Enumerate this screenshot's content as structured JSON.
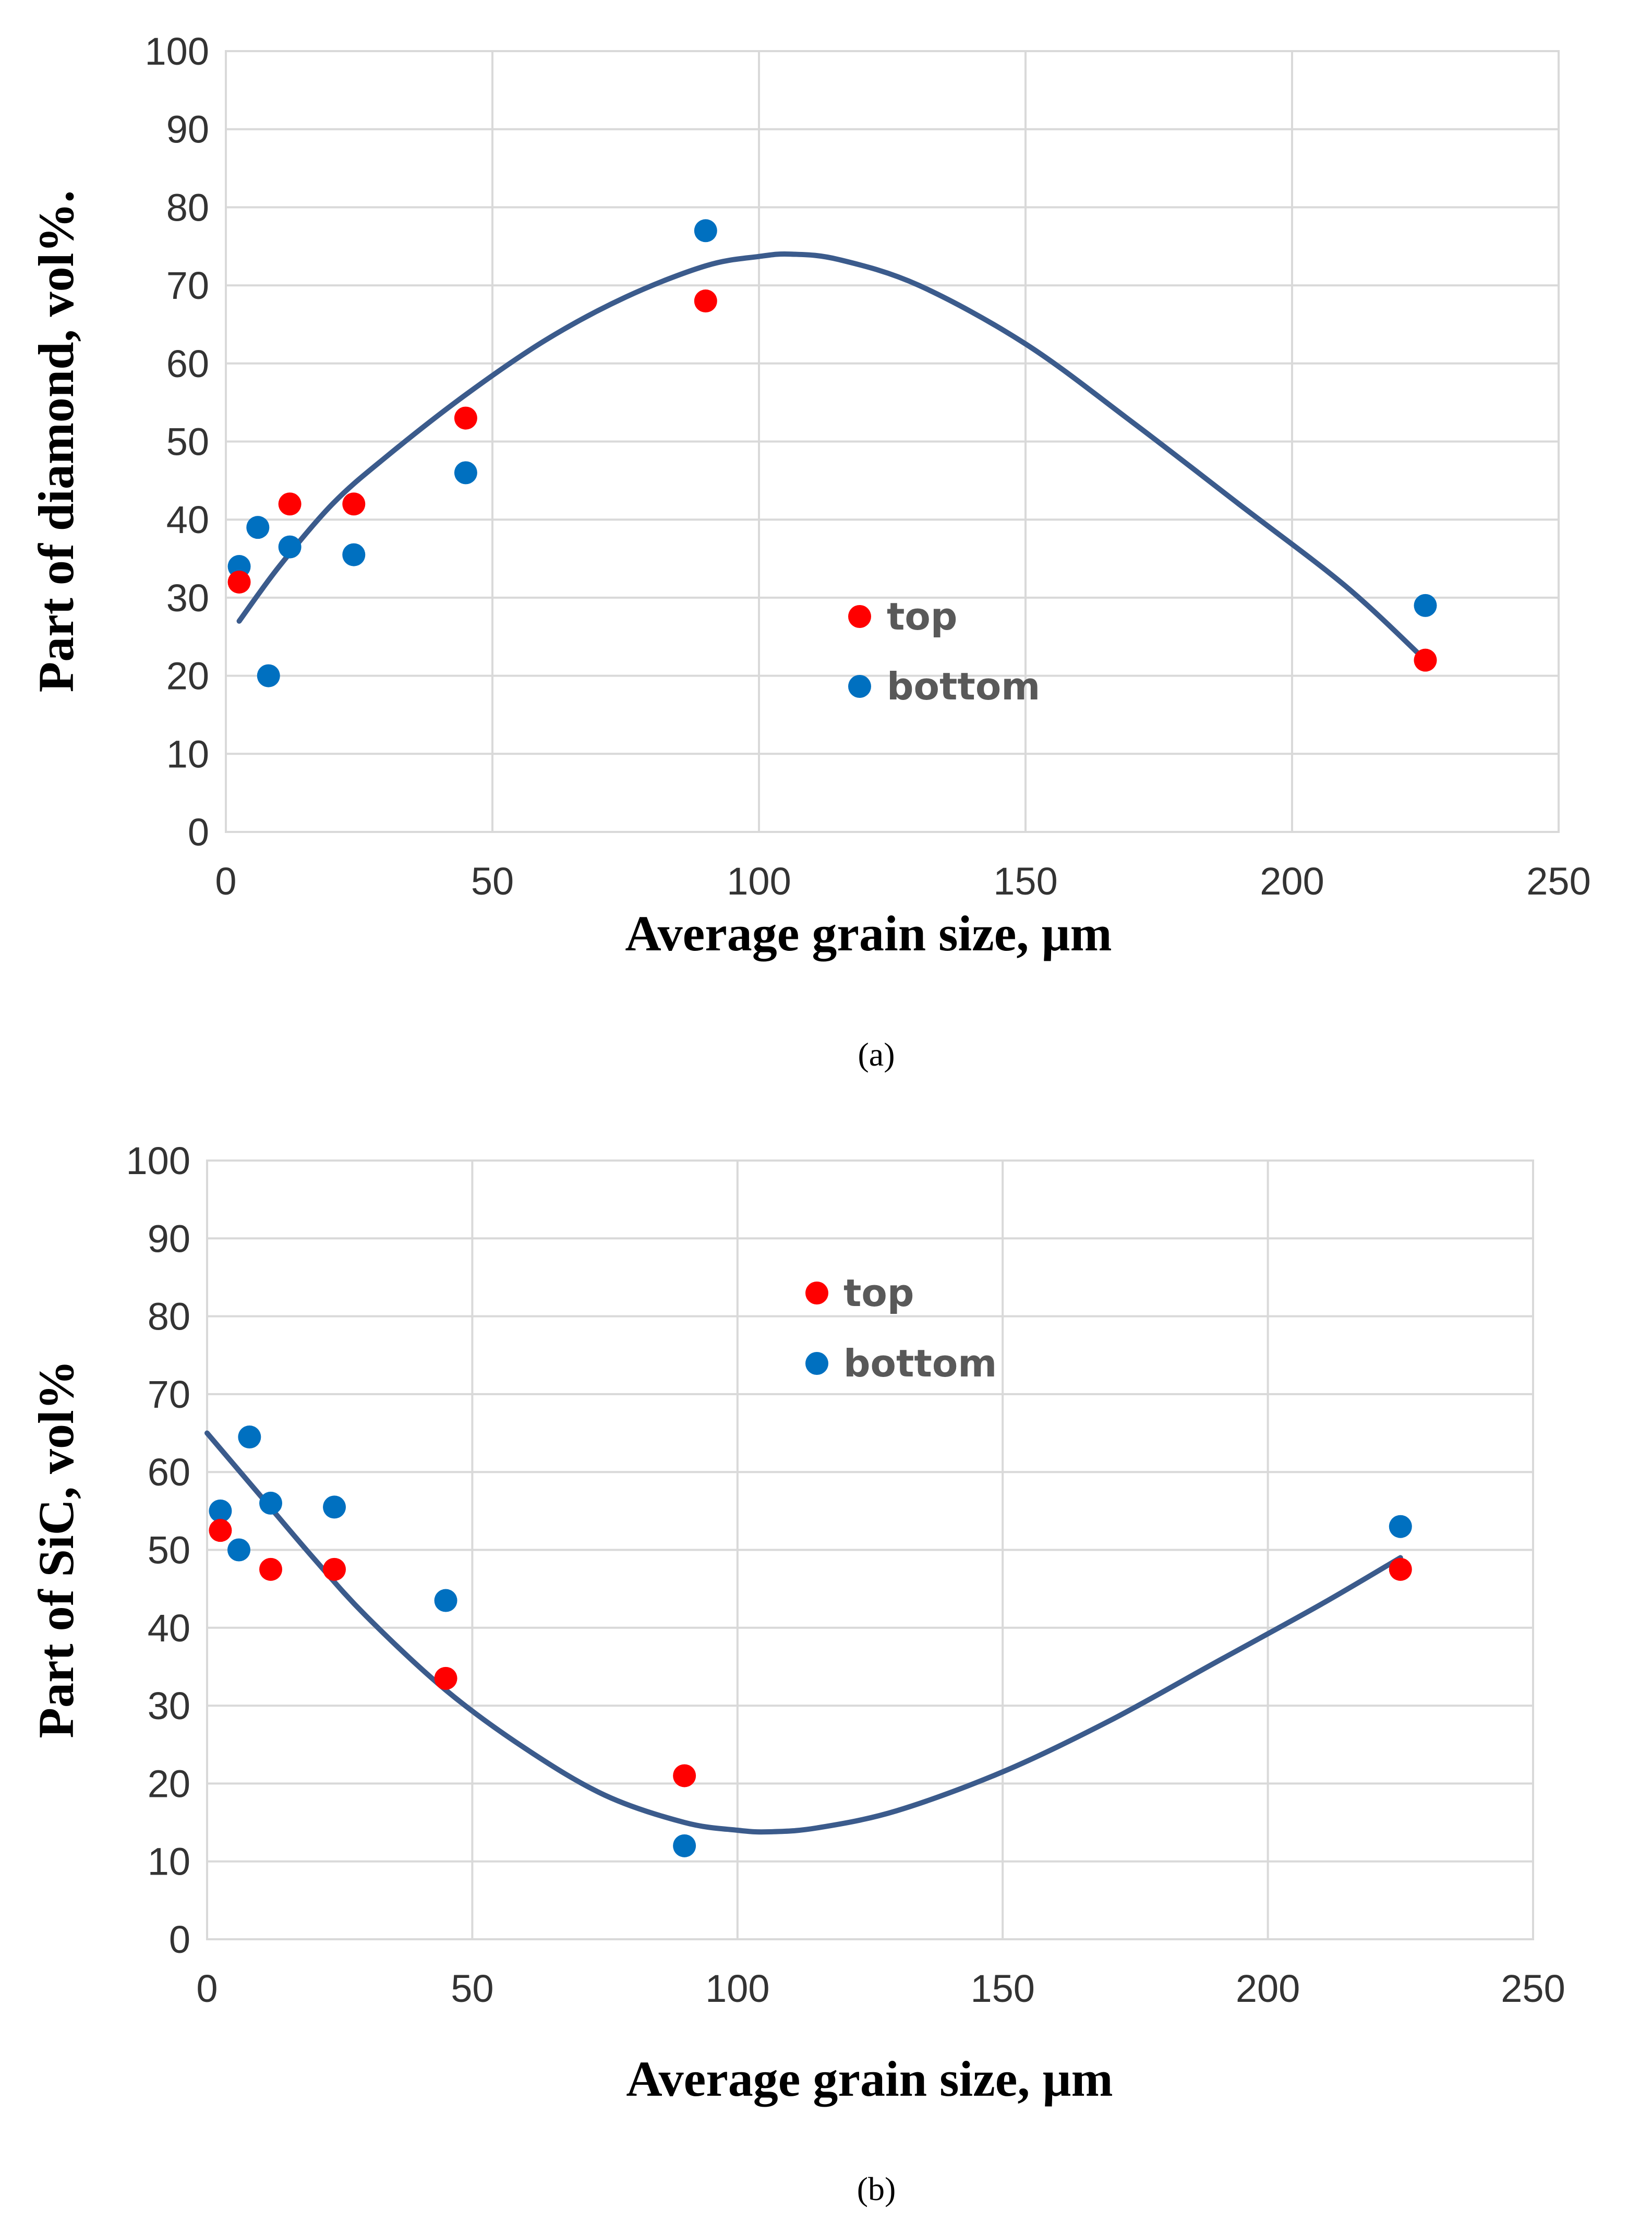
{
  "colors": {
    "top": "#ff0000",
    "bottom": "#0070c0",
    "trend": "#3b5b8c"
  },
  "chart_data": [
    {
      "type": "scatter",
      "id": "a",
      "caption": "(a)",
      "xlabel": "Average grain size, µm",
      "ylabel": "Part of diamond, vol%.",
      "xlim": [
        0,
        250
      ],
      "ylim": [
        0,
        100
      ],
      "xticks": [
        "0",
        "50",
        "100",
        "150",
        "200",
        "250"
      ],
      "yticks": [
        "0",
        "10",
        "20",
        "30",
        "40",
        "50",
        "60",
        "70",
        "80",
        "90",
        "100"
      ],
      "grid": true,
      "legend_position": "center",
      "series": [
        {
          "name": "top",
          "x": [
            2.5,
            12,
            24,
            45,
            90,
            225
          ],
          "y": [
            32,
            42,
            42,
            53,
            68,
            22
          ]
        },
        {
          "name": "bottom",
          "x": [
            2.5,
            6,
            8,
            12,
            24,
            45,
            90,
            225
          ],
          "y": [
            34,
            39,
            20,
            36.5,
            35.5,
            46,
            77,
            29
          ]
        }
      ],
      "trendline": {
        "name": "polynomial fit",
        "x": [
          2.5,
          10,
          20,
          30,
          45,
          60,
          75,
          90,
          100,
          106,
          115,
          130,
          150,
          170,
          190,
          210,
          225
        ],
        "y": [
          27,
          34,
          42,
          48,
          56,
          63,
          68.5,
          72.5,
          73.7,
          74,
          73.3,
          70,
          62.5,
          52.5,
          42,
          31.5,
          22
        ]
      }
    },
    {
      "type": "scatter",
      "id": "b",
      "caption": "(b)",
      "xlabel": "Average grain size, µm",
      "ylabel": "Part of SiC, vol%",
      "xlim": [
        0,
        250
      ],
      "ylim": [
        0,
        100
      ],
      "xticks": [
        "0",
        "50",
        "100",
        "150",
        "200",
        "250"
      ],
      "yticks": [
        "0",
        "10",
        "20",
        "30",
        "40",
        "50",
        "60",
        "70",
        "80",
        "90",
        "100"
      ],
      "grid": true,
      "legend_position": "top-center",
      "series": [
        {
          "name": "top",
          "x": [
            2.5,
            12,
            24,
            45,
            90,
            225
          ],
          "y": [
            52.5,
            47.5,
            47.5,
            33.5,
            21,
            47.5
          ]
        },
        {
          "name": "bottom",
          "x": [
            2.5,
            6,
            8,
            12,
            24,
            45,
            90,
            225
          ],
          "y": [
            55,
            50,
            64.5,
            56,
            55.5,
            43.5,
            12,
            53
          ]
        }
      ],
      "trendline": {
        "name": "polynomial fit",
        "x": [
          0,
          10,
          20,
          30,
          45,
          60,
          75,
          90,
          100,
          106,
          115,
          130,
          150,
          170,
          190,
          210,
          225
        ],
        "y": [
          65,
          57,
          49,
          41.5,
          32,
          24.5,
          18.5,
          15,
          14,
          13.8,
          14.3,
          16.5,
          21.5,
          28,
          35.5,
          43,
          49
        ]
      }
    }
  ]
}
